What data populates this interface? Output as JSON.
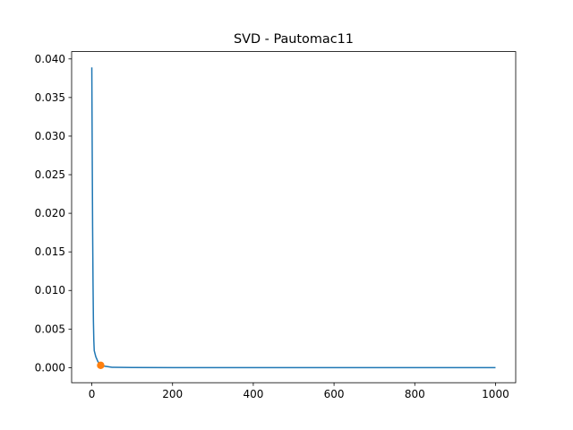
{
  "chart_data": {
    "type": "line",
    "title": "SVD - Pautomac11",
    "xlim": [
      -50,
      1050
    ],
    "xticks": [
      0,
      200,
      400,
      600,
      800,
      1000
    ],
    "ylim": [
      -0.00195,
      0.04095
    ],
    "yticks": [
      {
        "value": 0,
        "label": "0.000"
      },
      {
        "value": 0.005,
        "label": "0.005"
      },
      {
        "value": 0.01,
        "label": "0.010"
      },
      {
        "value": 0.015,
        "label": "0.015"
      },
      {
        "value": 0.02,
        "label": "0.020"
      },
      {
        "value": 0.025,
        "label": "0.025"
      },
      {
        "value": 0.03,
        "label": "0.030"
      },
      {
        "value": 0.035,
        "label": "0.035"
      },
      {
        "value": 0.04,
        "label": "0.040"
      }
    ],
    "series": [
      {
        "type": "line",
        "color": "#1f77b4",
        "x": [
          0,
          1,
          2,
          3,
          4,
          5,
          6,
          8,
          10,
          15,
          20,
          30,
          50,
          100,
          200,
          400,
          600,
          800,
          1000
        ],
        "values": [
          0.0389,
          0.028,
          0.018,
          0.011,
          0.006,
          0.0035,
          0.0022,
          0.0018,
          0.0014,
          0.0008,
          0.0004,
          0.0002,
          5e-05,
          2e-05,
          1e-05,
          5e-06,
          3e-06,
          2e-06,
          1e-06
        ]
      },
      {
        "type": "scatter",
        "color": "#ff7f0e",
        "x": [
          22
        ],
        "values": [
          0.0003
        ]
      }
    ]
  }
}
